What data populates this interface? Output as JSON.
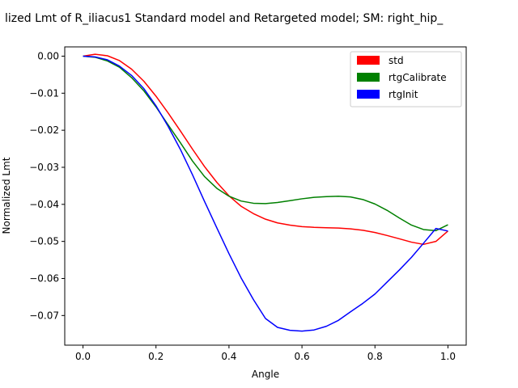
{
  "chart_data": {
    "type": "line",
    "title": "lized Lmt of R_iliacus1 Standard model and Retargeted model; SM: right_hip_",
    "xlabel": "Angle",
    "ylabel": "Normalized Lmt",
    "xlim": [
      -0.05,
      1.05
    ],
    "ylim": [
      -0.078,
      0.0025
    ],
    "xticks": [
      0.0,
      0.2,
      0.4,
      0.6,
      0.8,
      1.0
    ],
    "xtick_labels": [
      "0.0",
      "0.2",
      "0.4",
      "0.6",
      "0.8",
      "1.0"
    ],
    "yticks": [
      0.0,
      -0.01,
      -0.02,
      -0.03,
      -0.04,
      -0.05,
      -0.06,
      -0.07
    ],
    "ytick_labels": [
      "0.00",
      "−0.01",
      "−0.02",
      "−0.03",
      "−0.04",
      "−0.05",
      "−0.06",
      "−0.07"
    ],
    "grid": false,
    "legend_position": "top-right",
    "x": [
      0.0,
      0.033,
      0.067,
      0.1,
      0.133,
      0.167,
      0.2,
      0.233,
      0.267,
      0.3,
      0.333,
      0.367,
      0.4,
      0.433,
      0.467,
      0.5,
      0.533,
      0.567,
      0.6,
      0.633,
      0.667,
      0.7,
      0.733,
      0.767,
      0.8,
      0.833,
      0.867,
      0.9,
      0.933,
      0.967,
      1.0
    ],
    "series": [
      {
        "name": "std",
        "color": "#ff0000",
        "values": [
          0.0,
          0.0005,
          0.0001,
          -0.0012,
          -0.0035,
          -0.0068,
          -0.0108,
          -0.0153,
          -0.0202,
          -0.0251,
          -0.0298,
          -0.0341,
          -0.0377,
          -0.0405,
          -0.0425,
          -0.044,
          -0.045,
          -0.0456,
          -0.046,
          -0.0462,
          -0.0463,
          -0.0464,
          -0.0466,
          -0.047,
          -0.0476,
          -0.0484,
          -0.0493,
          -0.0502,
          -0.0508,
          -0.05,
          -0.0472
        ]
      },
      {
        "name": "rtgCalibrate",
        "color": "#008000",
        "values": [
          0.0,
          -0.0003,
          -0.0013,
          -0.003,
          -0.0058,
          -0.0094,
          -0.0137,
          -0.0185,
          -0.0234,
          -0.0283,
          -0.0325,
          -0.0357,
          -0.0378,
          -0.0391,
          -0.0397,
          -0.0398,
          -0.0395,
          -0.039,
          -0.0385,
          -0.0381,
          -0.0379,
          -0.0378,
          -0.038,
          -0.0387,
          -0.0399,
          -0.0416,
          -0.0437,
          -0.0456,
          -0.0468,
          -0.0471,
          -0.0455
        ]
      },
      {
        "name": "rtgInit",
        "color": "#0000ff",
        "values": [
          0.0,
          -0.0002,
          -0.001,
          -0.0027,
          -0.0052,
          -0.0088,
          -0.0134,
          -0.0189,
          -0.0252,
          -0.032,
          -0.0392,
          -0.0464,
          -0.0533,
          -0.0598,
          -0.0657,
          -0.0708,
          -0.0732,
          -0.074,
          -0.0742,
          -0.0739,
          -0.0729,
          -0.0713,
          -0.069,
          -0.0667,
          -0.0642,
          -0.061,
          -0.0577,
          -0.0543,
          -0.0505,
          -0.0465,
          -0.0472
        ]
      }
    ]
  }
}
